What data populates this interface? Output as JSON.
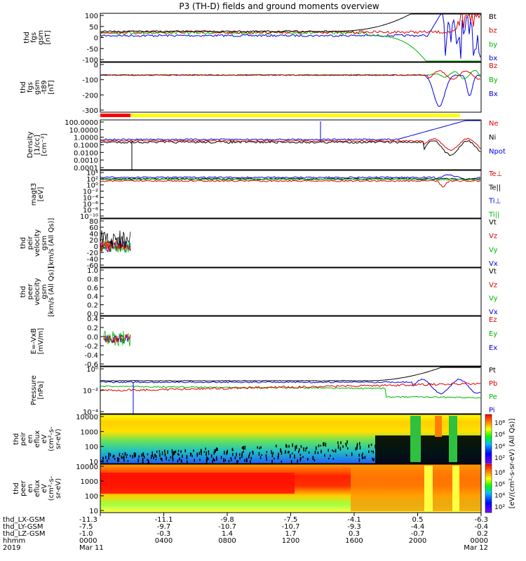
{
  "chart_data": {
    "type": "line",
    "title": "P3 (TH-D) fields and ground moments overview",
    "panels": [
      {
        "id": "fgs",
        "ylabel": [
          "thd",
          "fgs",
          "gsm",
          "[nT]"
        ],
        "ylim": [
          -100,
          100
        ],
        "yticks": [
          "100",
          "50",
          "0",
          "-50",
          "-100"
        ],
        "legend": [
          {
            "name": "Bt",
            "color": "#000000"
          },
          {
            "name": "bz",
            "color": "#e00000"
          },
          {
            "name": "by",
            "color": "#00b800"
          },
          {
            "name": "bx",
            "color": "#0000e0"
          }
        ]
      },
      {
        "id": "fgs_t89",
        "ylabel": [
          "thd",
          "fgs",
          "gsm",
          "-t89",
          "[nT]"
        ],
        "ylim": [
          -330,
          40
        ],
        "yticks": [
          "0",
          "-100",
          "-200",
          "-300"
        ],
        "legend": [
          {
            "name": "Bz",
            "color": "#e00000"
          },
          {
            "name": "By",
            "color": "#00b800"
          },
          {
            "name": "Bx",
            "color": "#0000e0"
          }
        ]
      },
      {
        "id": "density",
        "ylabel": [
          "Density",
          "[1/cc]",
          "[cm⁻³]"
        ],
        "ylim": [
          0.0001,
          100
        ],
        "yscale": "log",
        "yticks": [
          "100.0000",
          "10.0000",
          "1.0000",
          "0.1000",
          "0.0100",
          "0.0010",
          "0.0001"
        ],
        "legend": [
          {
            "name": "Ne",
            "color": "#e00000"
          },
          {
            "name": "Ni",
            "color": "#000000"
          },
          {
            "name": "Npot",
            "color": "#0000e0"
          }
        ]
      },
      {
        "id": "temp",
        "ylabel": [
          "magt3",
          "[eV]"
        ],
        "yscale": "log",
        "yticks": [
          "10⁴",
          "10²",
          "10⁰",
          "10⁻²",
          "10⁻⁴",
          "10⁻⁶",
          "10⁻⁸",
          "10⁻¹⁰"
        ],
        "legend": [
          {
            "name": "Te⊥",
            "color": "#e00000"
          },
          {
            "name": "Te||",
            "color": "#000000"
          },
          {
            "name": "Ti⊥",
            "color": "#0000e0"
          },
          {
            "name": "Ti||",
            "color": "#00b800"
          }
        ]
      },
      {
        "id": "peir_vel",
        "ylabel": [
          "thd",
          "peir",
          "velocity",
          "gsm",
          "[km/s (All Qs)]"
        ],
        "ylim": [
          -60,
          80
        ],
        "yticks": [
          "80",
          "60",
          "40",
          "20",
          "0",
          "-20",
          "-40",
          "-60"
        ],
        "legend": [
          {
            "name": "Vt",
            "color": "#000000"
          },
          {
            "name": "Vz",
            "color": "#e00000"
          },
          {
            "name": "Vy",
            "color": "#00b800"
          },
          {
            "name": "Vx",
            "color": "#0000e0"
          }
        ]
      },
      {
        "id": "peer_vel",
        "ylabel": [
          "thd",
          "peer",
          "velocity",
          "gsm",
          "[km/s (All Qs)]"
        ],
        "ylim": [
          0,
          1
        ],
        "yticks": [
          "1.0",
          "0.8",
          "0.6",
          "0.4",
          "0.2",
          "0.0"
        ],
        "legend": [
          {
            "name": "Vt",
            "color": "#000000"
          },
          {
            "name": "Vz",
            "color": "#e00000"
          },
          {
            "name": "Vy",
            "color": "#00b800"
          },
          {
            "name": "Vx",
            "color": "#0000e0"
          }
        ]
      },
      {
        "id": "efield",
        "ylabel": [
          "E=-VxB",
          "[mV/m]"
        ],
        "ylim": [
          -0.6,
          0.4
        ],
        "yticks": [
          "0.4",
          "0.2",
          "0.0",
          "-0.2",
          "-0.4",
          "-0.6"
        ],
        "legend": [
          {
            "name": "Ez",
            "color": "#e00000"
          },
          {
            "name": "Ey",
            "color": "#00b800"
          },
          {
            "name": "Ex",
            "color": "#0000e0"
          }
        ]
      },
      {
        "id": "pressure",
        "ylabel": [
          "Pressure",
          "[nPa]"
        ],
        "yscale": "log",
        "yticks": [
          "10⁰",
          "10⁻²",
          "10⁻⁴"
        ],
        "legend": [
          {
            "name": "Pt",
            "color": "#000000"
          },
          {
            "name": "Pb",
            "color": "#e00000"
          },
          {
            "name": "Pe",
            "color": "#00b800"
          },
          {
            "name": "Pi",
            "color": "#0000e0"
          }
        ]
      },
      {
        "id": "peir_en",
        "type": "heatmap",
        "ylabel": [
          "thd",
          "peir",
          "en",
          "eflux",
          "eV",
          "(cm²-s-",
          "sr-eV)"
        ],
        "yscale": "log",
        "yticks": [
          "10000",
          "1000",
          "100",
          "10"
        ],
        "colorbar": {
          "ticks": [
            "10⁸",
            "10⁶",
            "10⁴",
            "10²"
          ],
          "label": "[eV/(cm²-s-sr-eV) (All Qs)]"
        }
      },
      {
        "id": "peer_en",
        "type": "heatmap",
        "ylabel": [
          "thd",
          "peer",
          "en",
          "eflux",
          "eV",
          "(cm²-s-",
          "sr-eV)"
        ],
        "yscale": "log",
        "yticks": [
          "10000",
          "1000",
          "100",
          "10"
        ],
        "colorbar": {
          "ticks": [
            "10⁸",
            "10⁶",
            "10⁴",
            "10²"
          ],
          "label": "[eV/(cm²-s-sr-eV) (All Qs)]"
        }
      }
    ],
    "xaxis": {
      "row_labels": [
        "thd_LX-GSM",
        "thd_LY-GSM",
        "thd_LZ-GSM",
        "hhmm",
        "2019"
      ],
      "columns": [
        {
          "lx": "-11.3",
          "ly": "-7.5",
          "lz": "-1.0",
          "hhmm": "0000",
          "date": "Mar 11"
        },
        {
          "lx": "-11.1",
          "ly": "-9.7",
          "lz": "-0.3",
          "hhmm": "0400",
          "date": ""
        },
        {
          "lx": "-9.8",
          "ly": "-10.7",
          "lz": "1.4",
          "hhmm": "0800",
          "date": ""
        },
        {
          "lx": "-7.5",
          "ly": "-10.7",
          "lz": "1.7",
          "hhmm": "1200",
          "date": ""
        },
        {
          "lx": "-4.1",
          "ly": "-9.3",
          "lz": "0.3",
          "hhmm": "1600",
          "date": ""
        },
        {
          "lx": "0.5",
          "ly": "-4.4",
          "lz": "-0.7",
          "hhmm": "2000",
          "date": ""
        },
        {
          "lx": "-6.3",
          "ly": "-0.4",
          "lz": "0.2",
          "hhmm": "0000",
          "date": "Mar 12"
        }
      ]
    },
    "colors": {
      "black": "#000000",
      "red": "#e00000",
      "green": "#00b800",
      "blue": "#0000e0",
      "mode_bar_red": "#ff0000",
      "mode_bar_yellow": "#ffff00"
    }
  }
}
